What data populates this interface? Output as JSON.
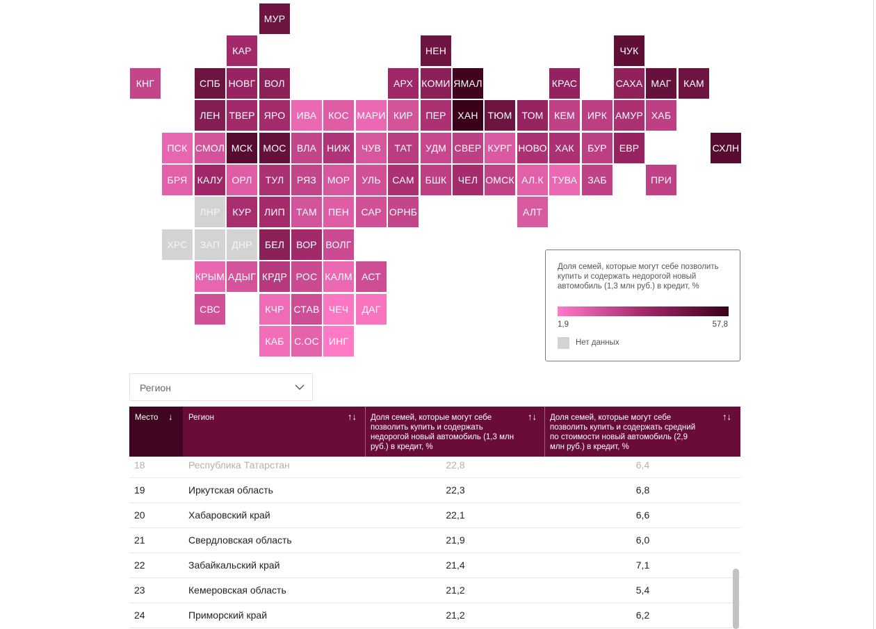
{
  "chart_data": {
    "type": "tile-map",
    "title": "Доля семей, которые могут себе позволить купить и содержать недорогой новый автомобиль (1,3 млн руб.) в кредит, %",
    "color_scale": {
      "min_label": "1,9",
      "max_label": "57,8",
      "min": 1.9,
      "max": 57.8,
      "low_color": "#ff7ac6",
      "mid_color": "#a3296a",
      "high_color": "#3a0019"
    },
    "no_data_label": "Нет данных",
    "no_data_color": "#d3d3d3",
    "tiles": [
      {
        "code": "МУР",
        "col": 4,
        "row": 0,
        "value": 44
      },
      {
        "code": "КАР",
        "col": 3,
        "row": 1,
        "value": 30
      },
      {
        "code": "НЕН",
        "col": 9,
        "row": 1,
        "value": 44
      },
      {
        "code": "ЧУК",
        "col": 15,
        "row": 1,
        "value": 48
      },
      {
        "code": "КНГ",
        "col": 0,
        "row": 2,
        "value": 20
      },
      {
        "code": "СПБ",
        "col": 2,
        "row": 2,
        "value": 44
      },
      {
        "code": "НОВГ",
        "col": 3,
        "row": 2,
        "value": 33
      },
      {
        "code": "ВОЛ",
        "col": 4,
        "row": 2,
        "value": 36
      },
      {
        "code": "АРХ",
        "col": 8,
        "row": 2,
        "value": 31
      },
      {
        "code": "КОМИ",
        "col": 9,
        "row": 2,
        "value": 36
      },
      {
        "code": "ЯМАЛ",
        "col": 10,
        "row": 2,
        "value": 56
      },
      {
        "code": "КРАС",
        "col": 13,
        "row": 2,
        "value": 34
      },
      {
        "code": "САХА",
        "col": 15,
        "row": 2,
        "value": 35
      },
      {
        "code": "МАГ",
        "col": 16,
        "row": 2,
        "value": 46
      },
      {
        "code": "КАМ",
        "col": 17,
        "row": 2,
        "value": 44
      },
      {
        "code": "ЛЕН",
        "col": 2,
        "row": 3,
        "value": 38
      },
      {
        "code": "ТВЕР",
        "col": 3,
        "row": 3,
        "value": 30
      },
      {
        "code": "ЯРО",
        "col": 4,
        "row": 3,
        "value": 29
      },
      {
        "code": "ИВА",
        "col": 5,
        "row": 3,
        "value": 8
      },
      {
        "code": "КОС",
        "col": 6,
        "row": 3,
        "value": 12
      },
      {
        "code": "МАРИ",
        "col": 7,
        "row": 3,
        "value": 8
      },
      {
        "code": "КИР",
        "col": 8,
        "row": 3,
        "value": 15
      },
      {
        "code": "ПЕР",
        "col": 9,
        "row": 3,
        "value": 27
      },
      {
        "code": "ХАН",
        "col": 10,
        "row": 3,
        "value": 57.8
      },
      {
        "code": "ТЮМ",
        "col": 11,
        "row": 3,
        "value": 44
      },
      {
        "code": "ТОМ",
        "col": 12,
        "row": 3,
        "value": 33
      },
      {
        "code": "КЕМ",
        "col": 13,
        "row": 3,
        "value": 21.2
      },
      {
        "code": "ИРК",
        "col": 14,
        "row": 3,
        "value": 22.3
      },
      {
        "code": "АМУР",
        "col": 15,
        "row": 3,
        "value": 27
      },
      {
        "code": "ХАБ",
        "col": 16,
        "row": 3,
        "value": 22.1
      },
      {
        "code": "ПСК",
        "col": 1,
        "row": 4,
        "value": 9
      },
      {
        "code": "СМОЛ",
        "col": 2,
        "row": 4,
        "value": 15
      },
      {
        "code": "МСК",
        "col": 3,
        "row": 4,
        "value": 50
      },
      {
        "code": "МОС",
        "col": 4,
        "row": 4,
        "value": 46
      },
      {
        "code": "ВЛА",
        "col": 5,
        "row": 4,
        "value": 20
      },
      {
        "code": "НИЖ",
        "col": 6,
        "row": 4,
        "value": 26
      },
      {
        "code": "ЧУВ",
        "col": 7,
        "row": 4,
        "value": 14
      },
      {
        "code": "ТАТ",
        "col": 8,
        "row": 4,
        "value": 22.8
      },
      {
        "code": "УДМ",
        "col": 9,
        "row": 4,
        "value": 19
      },
      {
        "code": "СВЕР",
        "col": 10,
        "row": 4,
        "value": 21.9
      },
      {
        "code": "КУРГ",
        "col": 11,
        "row": 4,
        "value": 13
      },
      {
        "code": "НОВО",
        "col": 12,
        "row": 4,
        "value": 27
      },
      {
        "code": "ХАК",
        "col": 13,
        "row": 4,
        "value": 27
      },
      {
        "code": "БУР",
        "col": 14,
        "row": 4,
        "value": 22
      },
      {
        "code": "ЕВР",
        "col": 15,
        "row": 4,
        "value": 33
      },
      {
        "code": "СХЛН",
        "col": 18,
        "row": 4,
        "value": 50
      },
      {
        "code": "БРЯ",
        "col": 1,
        "row": 5,
        "value": 11
      },
      {
        "code": "КАЛУ",
        "col": 2,
        "row": 5,
        "value": 31
      },
      {
        "code": "ОРЛ",
        "col": 3,
        "row": 5,
        "value": 12
      },
      {
        "code": "ТУЛ",
        "col": 4,
        "row": 5,
        "value": 27
      },
      {
        "code": "РЯЗ",
        "col": 5,
        "row": 5,
        "value": 20
      },
      {
        "code": "МОР",
        "col": 6,
        "row": 5,
        "value": 14
      },
      {
        "code": "УЛЬ",
        "col": 7,
        "row": 5,
        "value": 16
      },
      {
        "code": "САМ",
        "col": 8,
        "row": 5,
        "value": 27
      },
      {
        "code": "БШК",
        "col": 9,
        "row": 5,
        "value": 22
      },
      {
        "code": "ЧЕЛ",
        "col": 10,
        "row": 5,
        "value": 29
      },
      {
        "code": "ОМСК",
        "col": 11,
        "row": 5,
        "value": 21
      },
      {
        "code": "АЛ.К",
        "col": 12,
        "row": 5,
        "value": 11
      },
      {
        "code": "ТУВА",
        "col": 13,
        "row": 5,
        "value": 8
      },
      {
        "code": "ЗАБ",
        "col": 14,
        "row": 5,
        "value": 21.4
      },
      {
        "code": "ПРИ",
        "col": 16,
        "row": 5,
        "value": 21.2
      },
      {
        "code": "ЛНР",
        "col": 2,
        "row": 6,
        "value": null
      },
      {
        "code": "КУР",
        "col": 3,
        "row": 6,
        "value": 28
      },
      {
        "code": "ЛИП",
        "col": 4,
        "row": 6,
        "value": 29
      },
      {
        "code": "ТАМ",
        "col": 5,
        "row": 6,
        "value": 15
      },
      {
        "code": "ПЕН",
        "col": 6,
        "row": 6,
        "value": 12
      },
      {
        "code": "САР",
        "col": 7,
        "row": 6,
        "value": 16
      },
      {
        "code": "ОРНБ",
        "col": 8,
        "row": 6,
        "value": 20
      },
      {
        "code": "АЛТ",
        "col": 12,
        "row": 6,
        "value": 13
      },
      {
        "code": "ХРС",
        "col": 1,
        "row": 7,
        "value": null
      },
      {
        "code": "ЗАП",
        "col": 2,
        "row": 7,
        "value": null
      },
      {
        "code": "ДНР",
        "col": 3,
        "row": 7,
        "value": null
      },
      {
        "code": "БЕЛ",
        "col": 4,
        "row": 7,
        "value": 36
      },
      {
        "code": "ВОР",
        "col": 5,
        "row": 7,
        "value": 30
      },
      {
        "code": "ВОЛГ",
        "col": 6,
        "row": 7,
        "value": 18
      },
      {
        "code": "КРЫМ",
        "col": 2,
        "row": 8,
        "value": 9
      },
      {
        "code": "АДЫГ",
        "col": 3,
        "row": 8,
        "value": 15
      },
      {
        "code": "КРДР",
        "col": 4,
        "row": 8,
        "value": 24
      },
      {
        "code": "РОС",
        "col": 5,
        "row": 8,
        "value": 18
      },
      {
        "code": "КАЛМ",
        "col": 6,
        "row": 8,
        "value": 8
      },
      {
        "code": "АСТ",
        "col": 7,
        "row": 8,
        "value": 17
      },
      {
        "code": "СВС",
        "col": 2,
        "row": 9,
        "value": 16
      },
      {
        "code": "КЧР",
        "col": 4,
        "row": 9,
        "value": 7
      },
      {
        "code": "СТАВ",
        "col": 5,
        "row": 9,
        "value": 17
      },
      {
        "code": "ЧЕЧ",
        "col": 6,
        "row": 9,
        "value": 3
      },
      {
        "code": "ДАГ",
        "col": 7,
        "row": 9,
        "value": 4
      },
      {
        "code": "КАБ",
        "col": 4,
        "row": 10,
        "value": 6
      },
      {
        "code": "С.ОС",
        "col": 5,
        "row": 10,
        "value": 10
      },
      {
        "code": "ИНГ",
        "col": 6,
        "row": 10,
        "value": 1.9
      }
    ]
  },
  "legend": {
    "title": "Доля семей, которые могут себе позволить купить и содержать недорогой новый автомобиль (1,3 млн руб.) в кредит, %",
    "min_label": "1,9",
    "max_label": "57,8",
    "no_data_label": "Нет данных"
  },
  "filter": {
    "placeholder": "Регион"
  },
  "table": {
    "headers": {
      "rank": "Место",
      "region": "Регион",
      "cheap": "Доля семей, которые могут себе позволить купить и содержать недорогой новый автомобиль (1,3 млн руб.) в кредит, %",
      "mid": "Доля семей, которые могут себе позволить купить и содержать средний по стоимости новый автомобиль (2,9 млн руб.) в кредит, %"
    },
    "sort_desc_icon": "↓",
    "sort_both_icon": "↑↓",
    "rows": [
      {
        "rank": "18",
        "region": "Республика Татарстан",
        "cheap": "22,8",
        "mid": "6,4"
      },
      {
        "rank": "19",
        "region": "Иркутская область",
        "cheap": "22,3",
        "mid": "6,8"
      },
      {
        "rank": "20",
        "region": "Хабаровский край",
        "cheap": "22,1",
        "mid": "6,6"
      },
      {
        "rank": "21",
        "region": "Свердловская область",
        "cheap": "21,9",
        "mid": "6,0"
      },
      {
        "rank": "22",
        "region": "Забайкальский край",
        "cheap": "21,4",
        "mid": "7,1"
      },
      {
        "rank": "23",
        "region": "Кемеровская область",
        "cheap": "21,2",
        "mid": "5,4"
      },
      {
        "rank": "24",
        "region": "Приморский край",
        "cheap": "21,2",
        "mid": "6,2"
      }
    ]
  },
  "colors": {
    "header_bg": "#6a0c3a",
    "header_sorted_bg": "#3f0521"
  }
}
